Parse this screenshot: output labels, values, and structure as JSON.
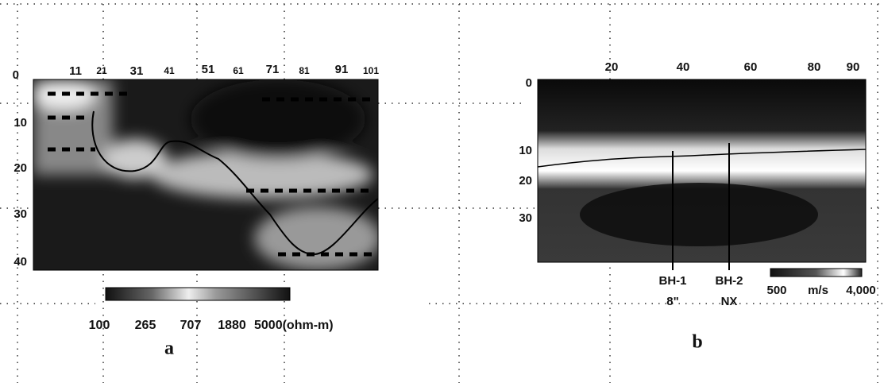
{
  "panels": [
    {
      "label": "a",
      "x_ticks": [
        "11",
        "21",
        "31",
        "41",
        "51",
        "61",
        "71",
        "81",
        "91",
        "101"
      ],
      "y_ticks": [
        "0",
        "10",
        "20",
        "30",
        "40"
      ],
      "colorbar": [
        "100",
        "265",
        "707",
        "1880",
        "5000(ohm-m)"
      ]
    },
    {
      "label": "b",
      "x_ticks": [
        "20",
        "40",
        "60",
        "80",
        "90"
      ],
      "y_ticks": [
        "0",
        "10",
        "20",
        "30"
      ],
      "boreholes": [
        {
          "name": "BH-1",
          "size": "8\""
        },
        {
          "name": "BH-2",
          "size": "NX"
        }
      ],
      "colorbar": {
        "min": "500",
        "unit": "m/s",
        "max": "4,000"
      }
    }
  ]
}
